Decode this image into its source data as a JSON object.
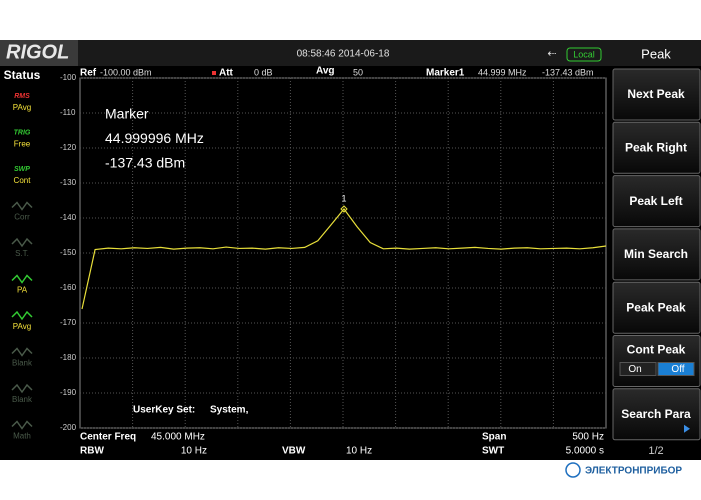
{
  "header": {
    "logo": "RIGOL",
    "datetime": "08:58:46 2014-06-18",
    "remote": "Local",
    "menu_title": "Peak"
  },
  "status": {
    "title": "Status",
    "items": [
      {
        "top": "RMS",
        "label": "PAvg",
        "active": true
      },
      {
        "top": "TRIG",
        "label": "Free",
        "active": true
      },
      {
        "top": "SWP",
        "label": "Cont",
        "active": true
      },
      {
        "label": "Corr",
        "active": false
      },
      {
        "label": "S.T.",
        "active": false
      },
      {
        "label": "PA",
        "active": true
      },
      {
        "label": "PAvg",
        "active": true
      },
      {
        "label": "Blank",
        "active": false
      },
      {
        "label": "Blank",
        "active": false
      },
      {
        "label": "Math",
        "active": false
      }
    ]
  },
  "top_bar": {
    "ref_label": "Ref",
    "ref": "-100.00 dBm",
    "att_label": "Att",
    "att": "0 dB",
    "avg_label": "Avg",
    "avg": "50",
    "marker_label": "Marker1",
    "marker_freq": "44.999 MHz",
    "marker_level": "-137.43 dBm"
  },
  "marker_box": [
    "Marker",
    "44.999996 MHz",
    "-137.43 dBm"
  ],
  "userkey": {
    "label": "UserKey Set:",
    "value": "System,"
  },
  "bottom": {
    "center_label": "Center Freq",
    "center": "45.000 MHz",
    "span_label": "Span",
    "span": "500 Hz",
    "rbw_label": "RBW",
    "rbw": "10 Hz",
    "vbw_label": "VBW",
    "vbw": "10 Hz",
    "swt_label": "SWT",
    "swt": "5.0000 s"
  },
  "chart_data": {
    "type": "line",
    "ylim": [
      -200,
      -100
    ],
    "yticks": [
      -100,
      -110,
      -120,
      -130,
      -140,
      -150,
      -160,
      -170,
      -180,
      -190,
      -200
    ],
    "grid": true,
    "marker_label": "1",
    "series": [
      {
        "color": "#e8df3a",
        "values": [
          -166,
          -149,
          -148.6,
          -148.8,
          -148.5,
          -148.7,
          -148.4,
          -148.9,
          -148.6,
          -148.5,
          -148.8,
          -148.3,
          -148.7,
          -148.6,
          -148.9,
          -148.5,
          -148.7,
          -148.4,
          -146.5,
          -142,
          -137.43,
          -142.5,
          -147,
          -148.8,
          -148.6,
          -148.9,
          -148.7,
          -148.5,
          -148.8,
          -148.6,
          -148.4,
          -148.7,
          -148.9,
          -148.6,
          -148.5,
          -148.8,
          -148.7,
          -148.6,
          -148.8,
          -148.5,
          -148
        ]
      }
    ]
  },
  "softkeys": [
    "Next Peak",
    "Peak Right",
    "Peak Left",
    "Min Search",
    "Peak Peak",
    "Cont Peak",
    "Search Para"
  ],
  "cont_peak_options": [
    "On",
    "Off"
  ],
  "page": "1/2",
  "footer": {
    "brand": "ЭЛЕКТРОНПРИБОР"
  }
}
